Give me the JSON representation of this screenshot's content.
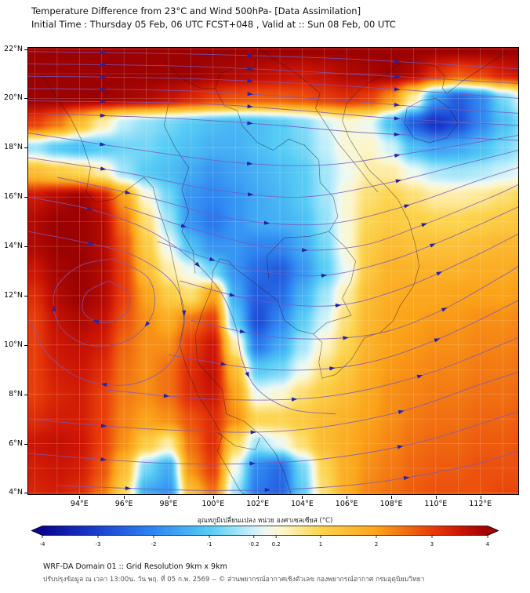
{
  "header": {
    "title_line1": "Temperature Difference from 23°C and Wind 500hPa- [Data Assimilation]",
    "title_line2": "Initial Time : Thursday 05 Feb, 06 UTC FCST+048 , Valid at ::  Sun 08 Feb, 00 UTC"
  },
  "footer": {
    "line1": "WRF-DA Domain 01 :: Grid Resolution 9km x 9km",
    "line2": "ปรับปรุงข้อมูล ณ เวลา 13:00น. วัน พฤ. ที่ 05 ก.พ. 2569 -- © ส่วนพยากรณ์อากาศเชิงตัวเลข กองพยากรณ์อากาศ กรมอุตุนิยมวิทยา"
  },
  "chart_data": {
    "type": "heatmap",
    "title": "Temperature Difference from 23°C and Wind 500hPa- [Data Assimilation]",
    "subtitle": "Initial Time : Thursday 05 Feb, 06 UTC FCST+048 , Valid at ::  Sun 08 Feb, 00 UTC",
    "lon_range": [
      91.7,
      113.7
    ],
    "lat_range": [
      3.95,
      22.05
    ],
    "axes": {
      "y_ticks": [
        {
          "label": "22°N",
          "lat": 22
        },
        {
          "label": "20°N",
          "lat": 20
        },
        {
          "label": "18°N",
          "lat": 18
        },
        {
          "label": "16°N",
          "lat": 16
        },
        {
          "label": "14°N",
          "lat": 14
        },
        {
          "label": "12°N",
          "lat": 12
        },
        {
          "label": "10°N",
          "lat": 10
        },
        {
          "label": "8°N",
          "lat": 8
        },
        {
          "label": "6°N",
          "lat": 6
        },
        {
          "label": "4°N",
          "lat": 4
        }
      ],
      "x_ticks": [
        {
          "label": "94°E",
          "lon": 94
        },
        {
          "label": "96°E",
          "lon": 96
        },
        {
          "label": "98°E",
          "lon": 98
        },
        {
          "label": "100°E",
          "lon": 100
        },
        {
          "label": "102°E",
          "lon": 102
        },
        {
          "label": "104°E",
          "lon": 104
        },
        {
          "label": "106°E",
          "lon": 106
        },
        {
          "label": "108°E",
          "lon": 108
        },
        {
          "label": "110°E",
          "lon": 110
        },
        {
          "label": "112°E",
          "lon": 112
        }
      ]
    },
    "grid": {
      "lons": [
        92,
        93,
        94,
        95,
        96,
        97,
        98,
        99,
        100,
        101,
        102,
        103,
        104,
        105,
        106,
        107,
        108,
        109,
        110,
        111,
        112,
        113,
        114
      ],
      "lats": [
        22,
        21,
        20,
        19,
        18,
        17,
        16,
        15,
        14,
        13,
        12,
        11,
        10,
        9,
        8,
        7,
        6,
        5,
        4
      ],
      "values": [
        [
          4,
          4,
          4,
          4,
          4,
          4,
          4,
          4,
          4,
          4,
          4,
          4,
          4,
          4,
          4,
          4,
          4,
          4,
          4,
          4,
          4,
          4,
          4
        ],
        [
          4,
          4,
          4,
          4,
          4,
          4,
          4,
          4,
          3.9,
          3.8,
          3.7,
          3.6,
          3.5,
          3.6,
          3.8,
          3.9,
          4,
          3.8,
          3.2,
          2.8,
          3,
          3.4,
          3.6
        ],
        [
          4,
          4,
          4,
          4,
          3.9,
          3.8,
          3.6,
          3.3,
          3,
          2.8,
          2.7,
          2.7,
          2.8,
          3,
          3.2,
          3,
          2.2,
          0.5,
          -1.8,
          -2.6,
          -2,
          -0.8,
          0
        ],
        [
          3,
          2.5,
          1.5,
          0.5,
          -0.3,
          -0.6,
          -0.8,
          -1,
          -1.2,
          -1.3,
          -1.2,
          -1,
          -0.7,
          -0.2,
          0.2,
          0,
          -1.2,
          -2.6,
          -3.2,
          -2.8,
          -2,
          -1.2,
          -0.6
        ],
        [
          -0.5,
          -1,
          -1.2,
          -1,
          -0.8,
          -0.8,
          -1,
          -1.2,
          -1.4,
          -1.4,
          -1.2,
          -1,
          -0.8,
          -0.3,
          0.2,
          0.3,
          -0.2,
          -1.2,
          -1.6,
          -1.5,
          -1.2,
          -0.8,
          -0.4
        ],
        [
          1.5,
          1.2,
          1,
          0.5,
          -0.5,
          -1,
          -1.2,
          -1.5,
          -1.8,
          -1.6,
          -1.4,
          -1.2,
          -1,
          -0.5,
          0,
          0.5,
          0.5,
          0,
          -0.4,
          -0.5,
          -0.4,
          -0.2,
          0
        ],
        [
          3.5,
          3.8,
          4,
          3.5,
          2,
          0.2,
          -0.8,
          -1.8,
          -2,
          -1.8,
          -1.5,
          -1.3,
          -1,
          -0.5,
          0.2,
          0.8,
          1,
          0.8,
          0.5,
          0.5,
          0.6,
          0.8,
          1
        ],
        [
          3.8,
          4,
          4,
          3.8,
          2.5,
          0.8,
          -0.5,
          -1.8,
          -2.2,
          -1.8,
          -1.5,
          -1.4,
          -1.2,
          -0.6,
          0.2,
          1,
          1.2,
          1.1,
          1,
          1,
          1.1,
          1.2,
          1.3
        ],
        [
          3.8,
          4,
          4,
          3.8,
          2.8,
          1.2,
          0,
          -1.2,
          -1.8,
          -1.8,
          -2,
          -2,
          -1.5,
          -0.8,
          0.2,
          1.2,
          1.5,
          1.4,
          1.4,
          1.4,
          1.5,
          1.6,
          1.6
        ],
        [
          3.5,
          3.9,
          4,
          3.8,
          3,
          1.5,
          0.5,
          0,
          -0.8,
          -1.8,
          -2.4,
          -2.6,
          -1.8,
          -1,
          0,
          1.3,
          1.7,
          1.7,
          1.7,
          1.7,
          1.8,
          1.8,
          1.9
        ],
        [
          3.2,
          3.8,
          4,
          3.8,
          3,
          2,
          1.2,
          0.8,
          2,
          -1.5,
          -2.6,
          -2.4,
          -1.4,
          -0.5,
          0.5,
          1.5,
          1.8,
          1.9,
          1.9,
          2,
          2,
          2,
          2.1
        ],
        [
          3,
          3.6,
          3.8,
          3.6,
          2.8,
          2.2,
          1.8,
          2.5,
          3,
          -1,
          -2.8,
          -2,
          -1,
          -0.2,
          0.8,
          1.6,
          1.9,
          2,
          2.1,
          2.1,
          2.2,
          2.2,
          2.3
        ],
        [
          3,
          3.5,
          3.6,
          3.4,
          2.6,
          2.2,
          2.2,
          3,
          3.5,
          0.5,
          -2.2,
          -1.5,
          -0.5,
          0.3,
          1,
          1.7,
          2,
          2.1,
          2.2,
          2.2,
          2.3,
          2.3,
          2.4
        ],
        [
          3,
          3.4,
          3.5,
          3.2,
          2.5,
          2.2,
          2.5,
          3.2,
          3.6,
          1.5,
          -1,
          -0.8,
          0,
          0.8,
          1.3,
          1.8,
          2.1,
          2.2,
          2.3,
          2.3,
          2.4,
          2.4,
          2.5
        ],
        [
          3,
          3.3,
          3.4,
          3,
          2.4,
          2.2,
          2.5,
          3.2,
          3.5,
          2,
          0,
          0.2,
          0.8,
          1.2,
          1.5,
          1.9,
          2.2,
          2.3,
          2.4,
          2.4,
          2.5,
          2.5,
          2.6
        ],
        [
          3.2,
          3.4,
          3.4,
          3,
          2.3,
          2,
          2.2,
          2.8,
          3.2,
          2.2,
          1,
          1,
          1.2,
          1.5,
          1.7,
          2,
          2.2,
          2.4,
          2.5,
          2.5,
          2.6,
          2.6,
          2.7
        ],
        [
          3.5,
          3.6,
          3.5,
          3,
          2.2,
          1.2,
          0.5,
          2.5,
          3.2,
          1,
          -0.5,
          0,
          0.8,
          1.5,
          1.8,
          2.1,
          2.3,
          2.5,
          2.6,
          2.6,
          2.7,
          2.7,
          2.8
        ],
        [
          3.4,
          3.5,
          3.4,
          2.8,
          1.5,
          -0.8,
          -1.5,
          2.2,
          3,
          0,
          -2,
          -2.4,
          -0.8,
          1,
          1.8,
          2.2,
          2.4,
          2.6,
          2.7,
          2.7,
          2.8,
          2.8,
          2.8
        ],
        [
          3.3,
          3.4,
          3.2,
          2.5,
          1,
          -1.5,
          -1.8,
          1.5,
          2.5,
          -0.5,
          -2.2,
          -2.5,
          -1,
          0.8,
          1.8,
          2.3,
          2.5,
          2.7,
          2.8,
          2.8,
          2.8,
          2.9,
          2.9
        ]
      ]
    },
    "colormap": [
      {
        "v": -4.0,
        "c": "#07078f"
      },
      {
        "v": -3.0,
        "c": "#1b3fd0"
      },
      {
        "v": -2.0,
        "c": "#2f86f2"
      },
      {
        "v": -1.0,
        "c": "#55ccf5"
      },
      {
        "v": -0.3,
        "c": "#bdeefb"
      },
      {
        "v": 0.0,
        "c": "#eef9f2"
      },
      {
        "v": 0.3,
        "c": "#fdf5c8"
      },
      {
        "v": 1.0,
        "c": "#fcd44e"
      },
      {
        "v": 2.0,
        "c": "#fba319"
      },
      {
        "v": 3.0,
        "c": "#e83c0a"
      },
      {
        "v": 3.5,
        "c": "#cc1505"
      },
      {
        "v": 4.0,
        "c": "#9c0202"
      }
    ],
    "colorbar": {
      "label": "อุณหภูมิเปลี่ยนแปลง หน่วย องศาเซลเซียส (°C)",
      "range": [
        -4,
        4
      ],
      "ticks": [
        {
          "label": "-4",
          "v": -4
        },
        {
          "label": "-3",
          "v": -3
        },
        {
          "label": "-2",
          "v": -2
        },
        {
          "label": "-1",
          "v": -1
        },
        {
          "label": "-0.2",
          "v": -0.2
        },
        {
          "label": "0.2",
          "v": 0.2
        },
        {
          "label": "1",
          "v": 1
        },
        {
          "label": "2",
          "v": 2
        },
        {
          "label": "3",
          "v": 3
        },
        {
          "label": "4",
          "v": 4
        }
      ]
    },
    "streamlines": {
      "color": "#7a58c0",
      "arrow_color": "#2424a8",
      "paths": [
        [
          [
            91.7,
            21.9
          ],
          [
            99,
            21.8
          ],
          [
            106,
            21.6
          ],
          [
            113.7,
            21.2
          ]
        ],
        [
          [
            91.7,
            21.4
          ],
          [
            99,
            21.3
          ],
          [
            106,
            21.0
          ],
          [
            113.7,
            20.6
          ]
        ],
        [
          [
            91.7,
            20.9
          ],
          [
            99,
            20.8
          ],
          [
            106,
            20.5
          ],
          [
            113.7,
            20.0
          ]
        ],
        [
          [
            91.7,
            20.4
          ],
          [
            99,
            20.3
          ],
          [
            106,
            19.9
          ],
          [
            110,
            19.6
          ],
          [
            113.7,
            19.4
          ]
        ],
        [
          [
            91.7,
            19.9
          ],
          [
            99,
            19.8
          ],
          [
            104,
            19.5
          ],
          [
            108,
            19.2
          ],
          [
            113.7,
            18.9
          ]
        ],
        [
          [
            91.7,
            19.4
          ],
          [
            98,
            19.2
          ],
          [
            103,
            18.9
          ],
          [
            107,
            18.6
          ],
          [
            113.7,
            18.3
          ]
        ],
        [
          [
            91.7,
            18.6
          ],
          [
            96,
            18.0
          ],
          [
            101,
            17.4
          ],
          [
            105,
            17.3
          ],
          [
            109,
            17.8
          ],
          [
            113.7,
            18.5
          ]
        ],
        [
          [
            91.7,
            17.6
          ],
          [
            96,
            17.0
          ],
          [
            100,
            16.3
          ],
          [
            104,
            16.0
          ],
          [
            108,
            16.6
          ],
          [
            111.5,
            17.4
          ],
          [
            113.7,
            17.9
          ]
        ],
        [
          [
            93,
            16.8
          ],
          [
            97,
            16.0
          ],
          [
            101,
            15.1
          ],
          [
            105,
            14.9
          ],
          [
            108.5,
            15.6
          ],
          [
            112,
            16.7
          ],
          [
            113.7,
            17.2
          ]
        ],
        [
          [
            96,
            15.6
          ],
          [
            99.5,
            14.6
          ],
          [
            103,
            13.9
          ],
          [
            106.5,
            14.0
          ],
          [
            109.5,
            14.9
          ],
          [
            112.5,
            16.0
          ],
          [
            113.7,
            16.5
          ]
        ],
        [
          [
            97.5,
            14.2
          ],
          [
            101,
            13.2
          ],
          [
            104.5,
            12.8
          ],
          [
            107.5,
            13.3
          ],
          [
            110.5,
            14.3
          ],
          [
            113.7,
            15.6
          ]
        ],
        [
          [
            98.5,
            12.6
          ],
          [
            102,
            11.8
          ],
          [
            105.5,
            11.6
          ],
          [
            108.5,
            12.3
          ],
          [
            111.5,
            13.5
          ],
          [
            113.7,
            14.5
          ]
        ],
        [
          [
            99,
            11.0
          ],
          [
            103,
            10.3
          ],
          [
            107,
            10.4
          ],
          [
            110,
            11.3
          ],
          [
            113,
            12.8
          ],
          [
            113.7,
            13.2
          ]
        ],
        [
          [
            98,
            9.6
          ],
          [
            102.5,
            9.0
          ],
          [
            106.5,
            9.2
          ],
          [
            110,
            10.2
          ],
          [
            113.7,
            11.8
          ]
        ],
        [
          [
            95,
            8.2
          ],
          [
            100,
            7.8
          ],
          [
            105,
            7.9
          ],
          [
            109.5,
            8.8
          ],
          [
            113.7,
            10.3
          ]
        ],
        [
          [
            91.7,
            7.0
          ],
          [
            97,
            6.6
          ],
          [
            103,
            6.5
          ],
          [
            108,
            7.2
          ],
          [
            112,
            8.4
          ],
          [
            113.7,
            8.9
          ]
        ],
        [
          [
            91.7,
            5.6
          ],
          [
            98,
            5.2
          ],
          [
            104,
            5.3
          ],
          [
            109,
            6.0
          ],
          [
            113.7,
            7.3
          ]
        ],
        [
          [
            93,
            4.3
          ],
          [
            100,
            4.1
          ],
          [
            106,
            4.3
          ],
          [
            111,
            5.0
          ],
          [
            113.7,
            5.7
          ]
        ],
        [
          [
            95.3,
            12.6
          ],
          [
            96.2,
            12.1
          ],
          [
            96.1,
            11.3
          ],
          [
            95.1,
            10.9
          ],
          [
            94.2,
            11.3
          ],
          [
            94.3,
            12.1
          ],
          [
            95.3,
            12.6
          ]
        ],
        [
          [
            95.5,
            13.5
          ],
          [
            97.1,
            12.7
          ],
          [
            97.3,
            11.3
          ],
          [
            96.2,
            10.2
          ],
          [
            94.4,
            10.0
          ],
          [
            93.1,
            10.8
          ],
          [
            92.9,
            12.2
          ],
          [
            94.0,
            13.2
          ],
          [
            95.5,
            13.5
          ]
        ],
        [
          [
            91.7,
            14.6
          ],
          [
            94,
            14.2
          ],
          [
            96.5,
            13.6
          ],
          [
            98.3,
            12.4
          ],
          [
            98.7,
            10.8
          ],
          [
            98,
            9.2
          ],
          [
            96.3,
            8.4
          ],
          [
            94.2,
            8.6
          ],
          [
            92.6,
            9.6
          ],
          [
            91.8,
            11.0
          ]
        ],
        [
          [
            91.7,
            16.0
          ],
          [
            94.5,
            15.5
          ],
          [
            97,
            14.7
          ],
          [
            99,
            13.5
          ],
          [
            100.3,
            12.2
          ],
          [
            101,
            10.8
          ],
          [
            101.3,
            9.4
          ],
          [
            102,
            8.2
          ],
          [
            103.5,
            7.4
          ],
          [
            105.5,
            7.2
          ]
        ]
      ]
    }
  }
}
